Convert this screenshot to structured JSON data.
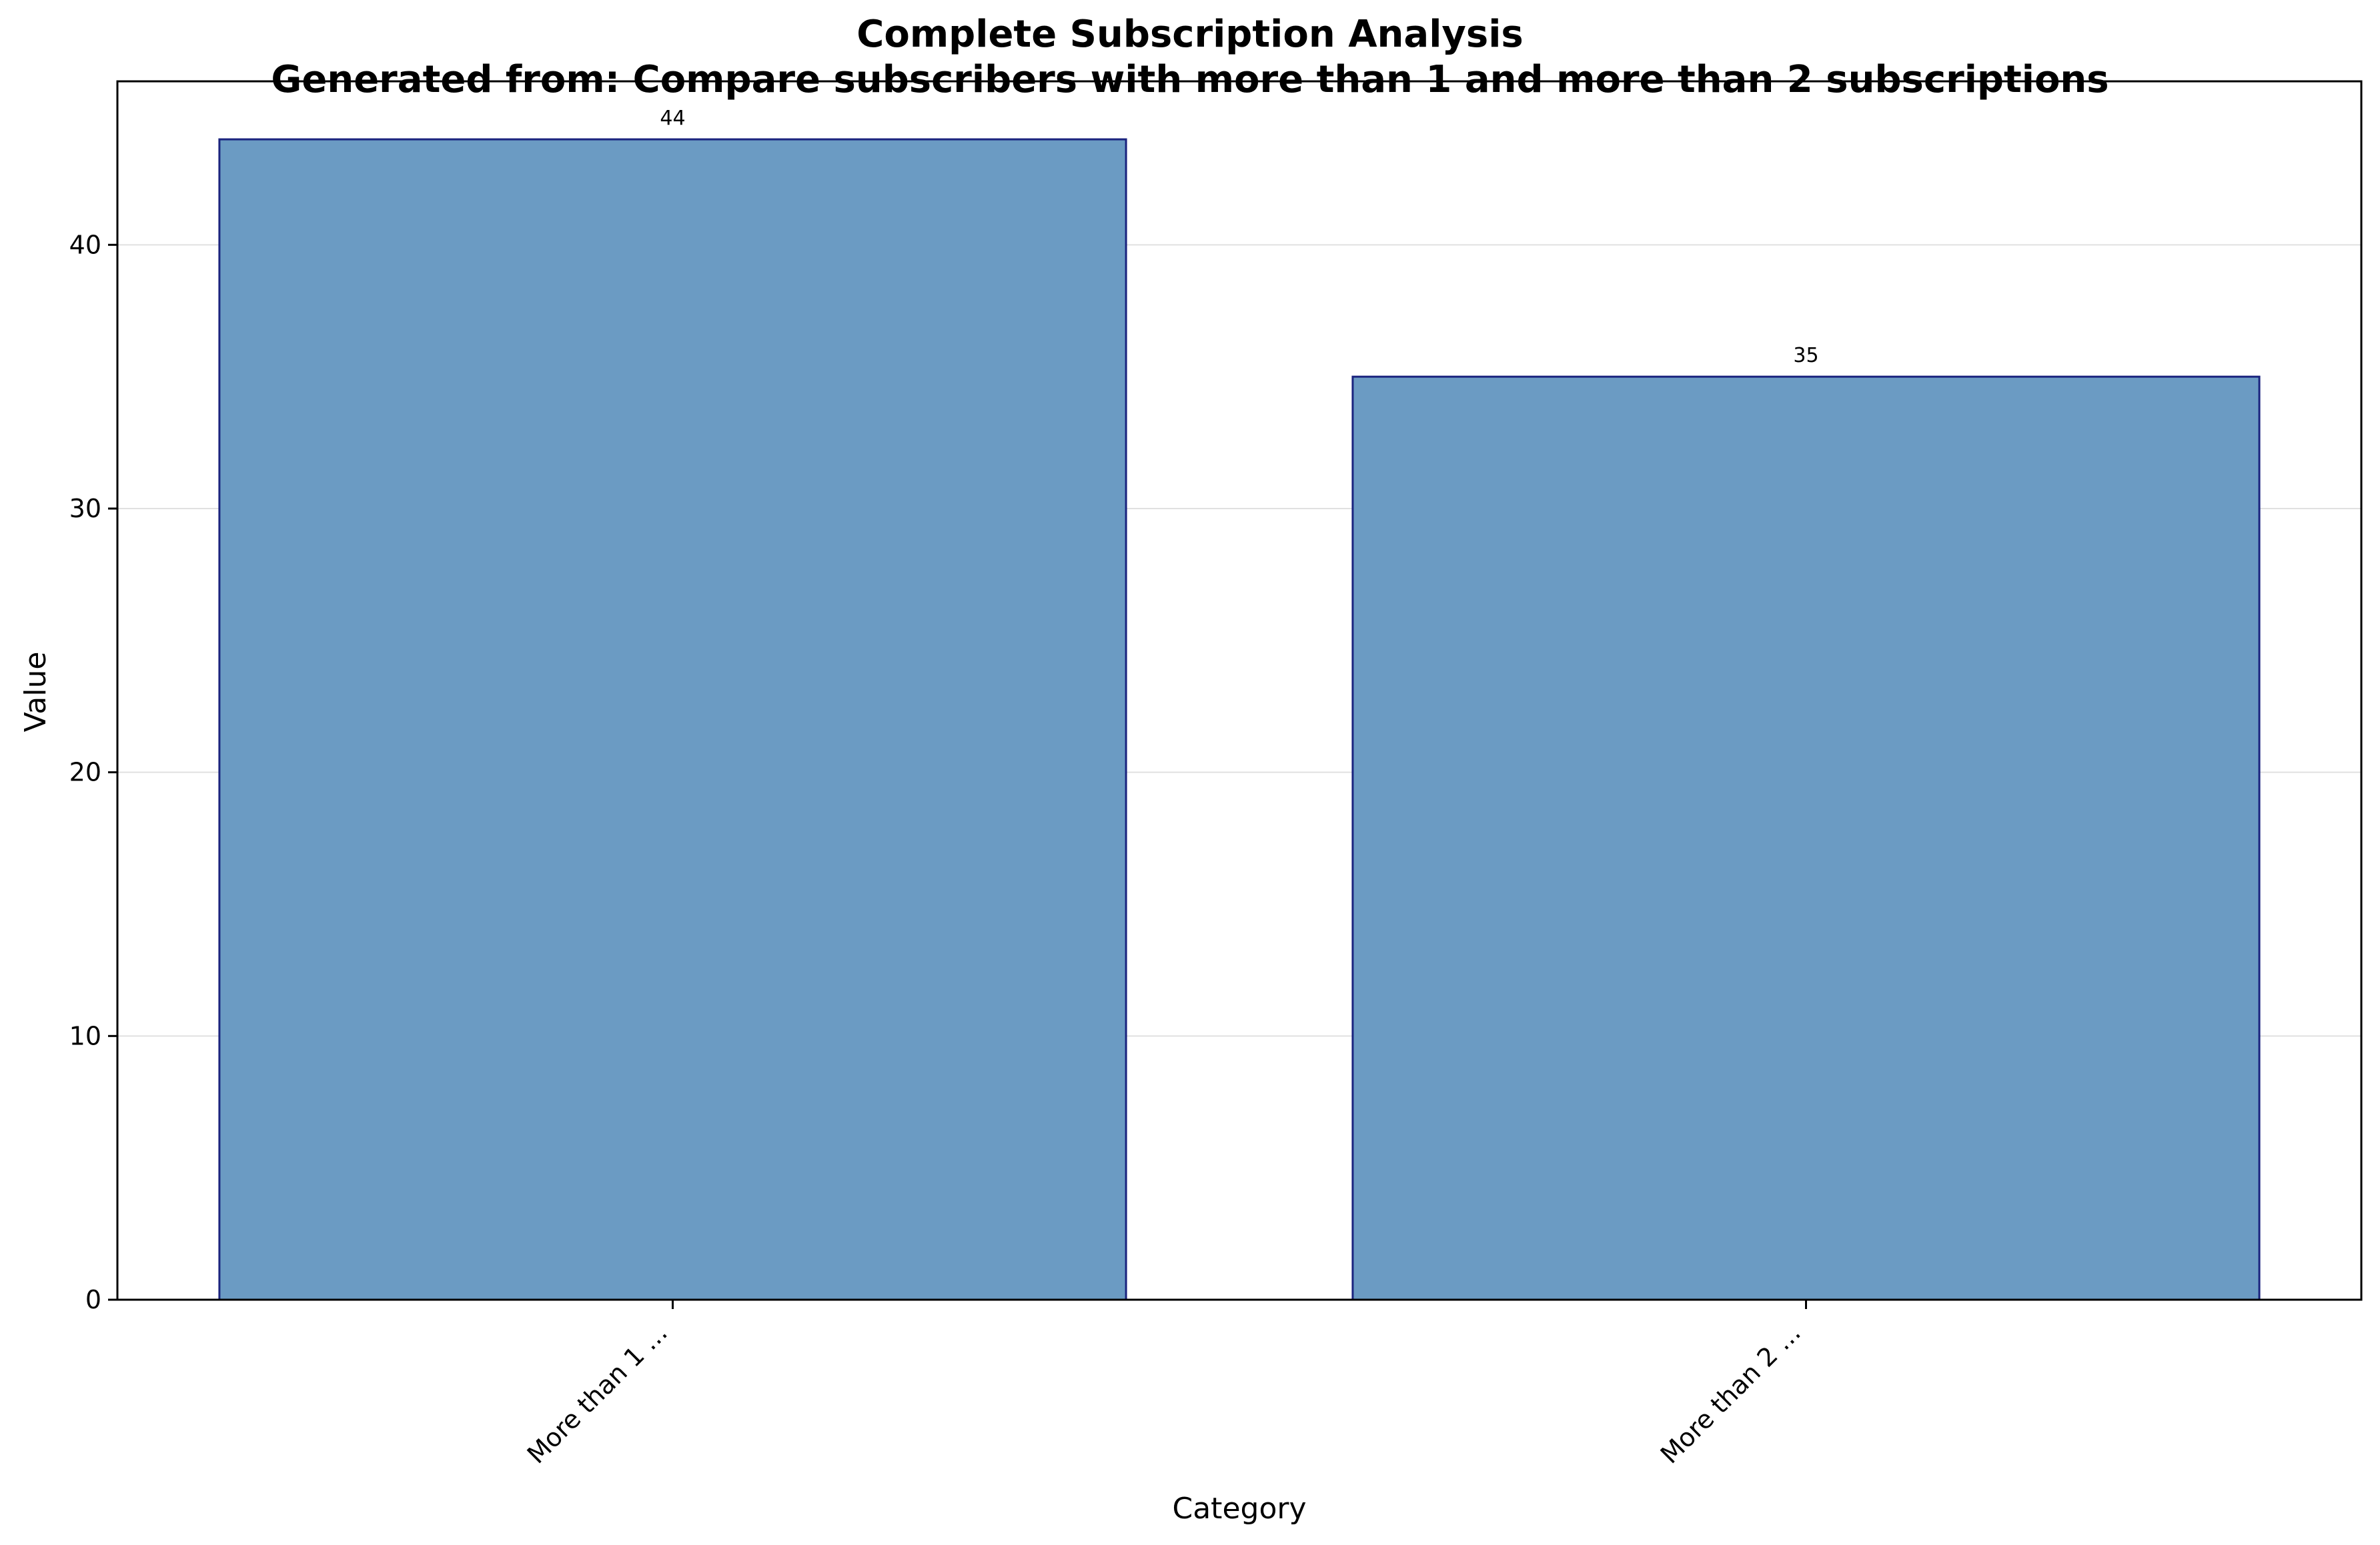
{
  "chart_data": {
    "type": "bar",
    "title": "Complete Subscription Analysis",
    "subtitle": "Generated from: Compare subscribers with more than 1 and more than 2 subscriptions",
    "xlabel": "Category",
    "ylabel": "Value",
    "categories": [
      "More than 1 ...",
      "More than 2 ..."
    ],
    "values": [
      44,
      35
    ],
    "data_labels": [
      "44",
      "35"
    ],
    "ylim": [
      0,
      46.2
    ],
    "yticks": [
      0,
      10,
      20,
      30,
      40
    ],
    "grid": "horizontal",
    "legend": "none",
    "colors": {
      "bar_fill": "#6b9bc3",
      "bar_edge": "#1a237e",
      "grid": "#e0e0e0",
      "axis": "#000000"
    }
  }
}
